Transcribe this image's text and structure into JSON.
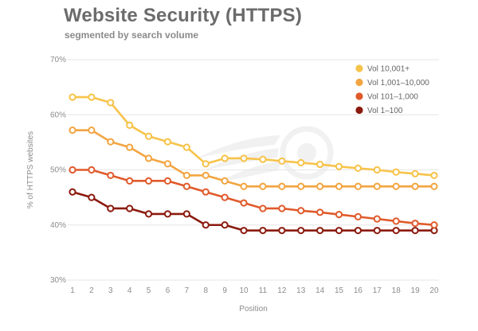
{
  "header": {
    "title": "Website Security (HTTPS)",
    "subtitle": "segmented by search volume"
  },
  "chart_data": {
    "type": "line",
    "xlabel": "Position",
    "ylabel": "% of HTTPS websites",
    "x": [
      1,
      2,
      3,
      4,
      5,
      6,
      7,
      8,
      9,
      10,
      11,
      12,
      13,
      14,
      15,
      16,
      17,
      18,
      19,
      20
    ],
    "xlim": [
      1,
      20
    ],
    "ylim": [
      30,
      70
    ],
    "yticks": [
      "30%",
      "40%",
      "50%",
      "60%",
      "70%"
    ],
    "grid": true,
    "legend_position": "top-right",
    "series": [
      {
        "name": "Vol 10,001+",
        "color": "#f7c34a",
        "values": [
          63.2,
          63.2,
          62.2,
          58.1,
          56.1,
          55.1,
          54.1,
          51.1,
          52.1,
          52.1,
          51.9,
          51.6,
          51.3,
          51.0,
          50.6,
          50.3,
          50.0,
          49.6,
          49.3,
          49.0
        ]
      },
      {
        "name": "Vol 1,001–10,000",
        "color": "#f2a541",
        "values": [
          57.2,
          57.2,
          55.1,
          54.1,
          52.1,
          51.1,
          49.0,
          49.0,
          48.0,
          47.0,
          47.0,
          47.0,
          47.0,
          47.0,
          47.0,
          47.0,
          47.0,
          47.0,
          47.0,
          47.0
        ]
      },
      {
        "name": "Vol 101–1,000",
        "color": "#e05a2b",
        "values": [
          50.0,
          50.0,
          49.0,
          48.0,
          48.0,
          48.0,
          47.0,
          46.0,
          45.0,
          44.0,
          43.0,
          43.0,
          42.6,
          42.3,
          41.9,
          41.5,
          41.1,
          40.7,
          40.3,
          40.0
        ]
      },
      {
        "name": "Vol 1–100",
        "color": "#8b1a0e",
        "values": [
          46.0,
          45.0,
          43.0,
          43.0,
          42.0,
          42.0,
          42.0,
          40.0,
          40.0,
          39.0,
          39.0,
          39.0,
          39.0,
          39.0,
          39.0,
          39.0,
          39.0,
          39.0,
          39.0,
          39.0
        ]
      }
    ]
  }
}
